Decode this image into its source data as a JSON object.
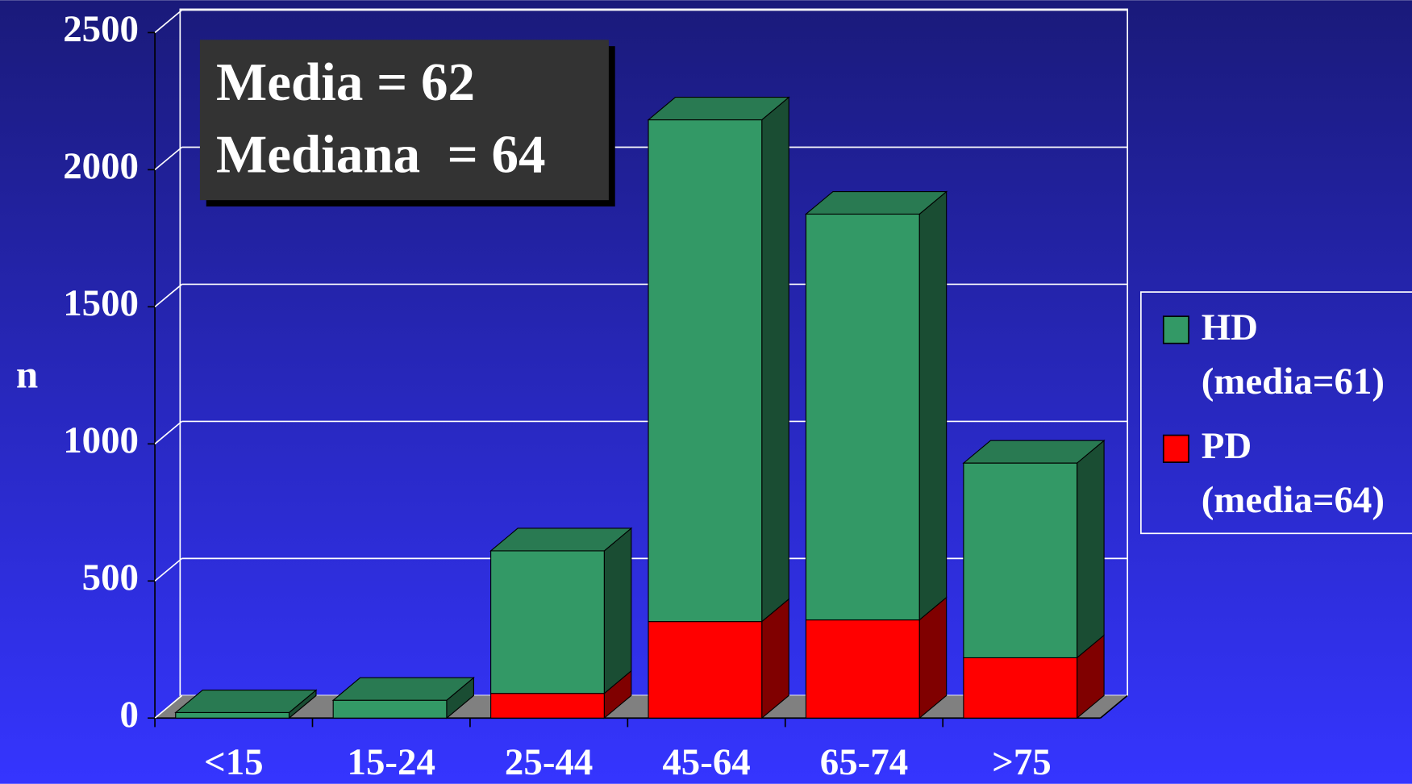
{
  "chart_data": {
    "type": "bar3d_stacked",
    "annotations": [
      "Media = 62",
      "Mediana  = 64"
    ],
    "y_label": "n",
    "categories": [
      "<15",
      "15-24",
      "25-44",
      "45-64",
      "65-74",
      ">75"
    ],
    "series": [
      {
        "name": "PD",
        "note": "(media=64)",
        "color": "#ff0000",
        "values": [
          0,
          0,
          90,
          352,
          358,
          220
        ]
      },
      {
        "name": "HD",
        "note": "(media=61)",
        "color": "#339966",
        "values": [
          20,
          65,
          520,
          1830,
          1480,
          710
        ]
      }
    ],
    "ylim": [
      0,
      2500
    ],
    "yticks": [
      0,
      500,
      1000,
      1500,
      2000,
      2500
    ],
    "grid": true
  }
}
